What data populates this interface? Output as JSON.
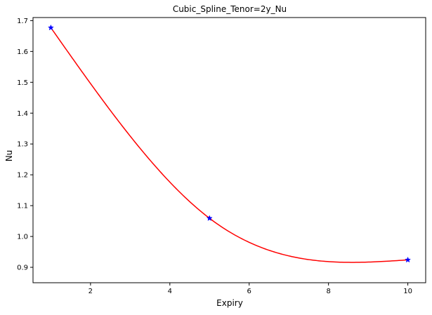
{
  "chart_data": {
    "type": "line",
    "title": "Cubic_Spline_Tenor=2y_Nu",
    "xlabel": "Expiry",
    "ylabel": "Nu",
    "xlim": [
      0.55,
      10.45
    ],
    "ylim": [
      0.85,
      1.71
    ],
    "x_ticks": [
      2,
      4,
      6,
      8,
      10
    ],
    "y_ticks": [
      0.9,
      1.0,
      1.1,
      1.2,
      1.3,
      1.4,
      1.5,
      1.6,
      1.7
    ],
    "x_tick_labels": [
      "2",
      "4",
      "6",
      "8",
      "10"
    ],
    "y_tick_labels": [
      "0.9",
      "1.0",
      "1.1",
      "1.2",
      "1.3",
      "1.4",
      "1.5",
      "1.6",
      "1.7"
    ],
    "grid": false,
    "series": [
      {
        "kind": "spline",
        "color": "#ff0000",
        "x": [
          1,
          5,
          10
        ],
        "y": [
          1.677,
          1.059,
          0.924
        ]
      },
      {
        "kind": "points",
        "marker": "star",
        "color": "#0000ff",
        "x": [
          1,
          5,
          10
        ],
        "y": [
          1.677,
          1.059,
          0.924
        ]
      }
    ]
  }
}
